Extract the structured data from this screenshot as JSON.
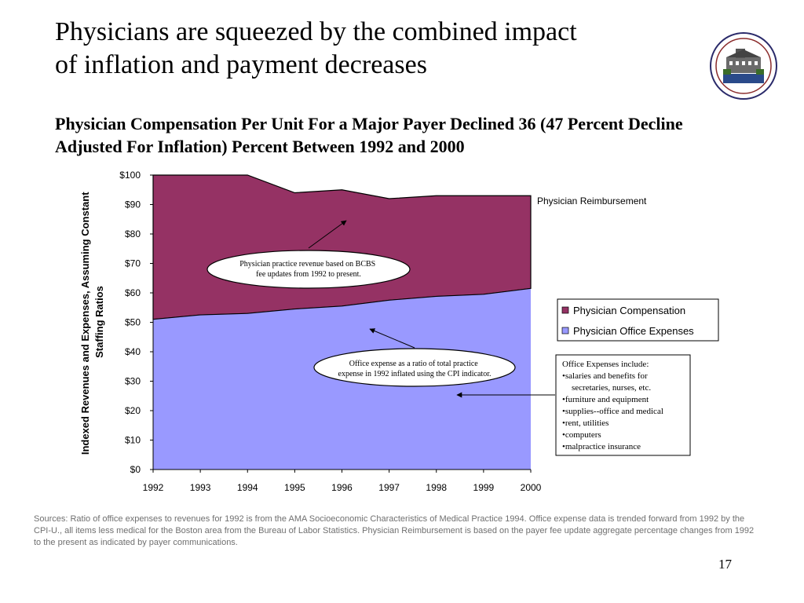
{
  "slide": {
    "title_line1": "Physicians are squeezed by the combined impact",
    "title_line2": "of inflation and payment decreases",
    "subtitle_line1": "Physician Compensation Per Unit For a Major Payer Declined 36 (47 Percent Decline",
    "subtitle_line2": "Adjusted For Inflation) Percent Between 1992 and 2000",
    "sources": "Sources: Ratio of office expenses to revenues for 1992 is from the AMA Socioeconomic Characteristics of Medical Practice 1994.  Office expense data is trended forward from 1992 by the CPI-U., all items less medical for the Boston area from the Bureau of Labor Statistics.  Physician Reimbursement  is based on the payer fee update aggregate percentage changes from 1992 to the present as indicated by payer communications.",
    "page_number": "17"
  },
  "colors": {
    "compensation": "#953264",
    "office_expenses": "#9999ff"
  },
  "chart_data": {
    "type": "area",
    "stacked": true,
    "categories": [
      "1992",
      "1993",
      "1994",
      "1995",
      "1996",
      "1997",
      "1998",
      "1999",
      "2000"
    ],
    "series": [
      {
        "name": "Physician Office Expenses",
        "values": [
          51,
          52.5,
          53,
          54.5,
          55.5,
          57.5,
          58.8,
          59.5,
          61.5
        ]
      },
      {
        "name": "Physician Compensation",
        "values": [
          49,
          47.5,
          47,
          39.5,
          39.5,
          34.5,
          34.2,
          33.5,
          31.5
        ]
      }
    ],
    "total_label": "Physician Reimbursement",
    "y_ticks": [
      "$0",
      "$10",
      "$20",
      "$30",
      "$40",
      "$50",
      "$60",
      "$70",
      "$80",
      "$90",
      "$100"
    ],
    "ylim": [
      0,
      100
    ],
    "ylabel_line1": "Indexed Revenues and Expenses, Assuming Constant",
    "ylabel_line2": "Staffing Ratios",
    "legend_position": "right",
    "annotations": {
      "revenue_line1": "Physician practice revenue based on BCBS",
      "revenue_line2": "fee updates from 1992 to present.",
      "expense_line1": "Office expense as a ratio of total practice",
      "expense_line2": "expense in 1992 inflated using the CPI indicator.",
      "expense_box": [
        "Office Expenses include:",
        "•salaries and benefits for",
        "secretaries, nurses, etc.",
        "•furniture and equipment",
        "•supplies--office and medical",
        "•rent, utilities",
        "•computers",
        "•malpractice insurance"
      ]
    }
  }
}
